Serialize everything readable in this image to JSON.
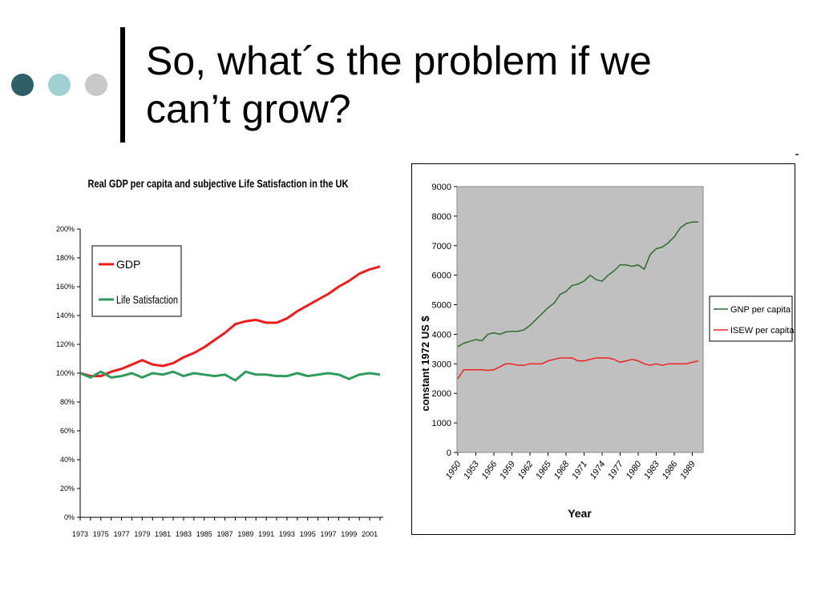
{
  "slide": {
    "title_line1": "So, what´s the problem if we",
    "title_line2": "can’t grow?",
    "accent_dots": [
      "#2f5f68",
      "#9fd0d2",
      "#c8c8c8"
    ]
  },
  "chart_data": [
    {
      "type": "line",
      "title": "Real GDP per capita and subjective Life Satisfaction in the UK",
      "xlabel": "",
      "ylabel": "",
      "x": [
        1973,
        1974,
        1975,
        1976,
        1977,
        1978,
        1979,
        1980,
        1981,
        1982,
        1983,
        1984,
        1985,
        1986,
        1987,
        1988,
        1989,
        1990,
        1991,
        1992,
        1993,
        1994,
        1995,
        1996,
        1997,
        1998,
        1999,
        2000,
        2001,
        2002
      ],
      "x_tick_labels": [
        "1973",
        "1975",
        "1977",
        "1979",
        "1981",
        "1983",
        "1985",
        "1987",
        "1989",
        "1991",
        "1993",
        "1995",
        "1997",
        "1999",
        "2001"
      ],
      "y_ticks": [
        0,
        20,
        40,
        60,
        80,
        100,
        120,
        140,
        160,
        180,
        200
      ],
      "y_tick_labels": [
        "0%",
        "20%",
        "40%",
        "60%",
        "80%",
        "100%",
        "120%",
        "140%",
        "160%",
        "180%",
        "200%"
      ],
      "ylim": [
        0,
        200
      ],
      "legend_position": "top-left",
      "grid": false,
      "series": [
        {
          "name": "GDP",
          "color": "#ee1c1c",
          "values": [
            100,
            98,
            98,
            101,
            103,
            106,
            109,
            106,
            105,
            107,
            111,
            114,
            118,
            123,
            128,
            134,
            136,
            137,
            135,
            135,
            138,
            143,
            147,
            151,
            155,
            160,
            164,
            169,
            172,
            174
          ]
        },
        {
          "name": "Life Satisfaction",
          "color": "#2e9a5c",
          "values": [
            100,
            97,
            101,
            97,
            98,
            100,
            97,
            100,
            99,
            101,
            98,
            100,
            99,
            98,
            99,
            95,
            101,
            99,
            99,
            98,
            98,
            100,
            98,
            99,
            100,
            99,
            96,
            99,
            100,
            99
          ]
        }
      ]
    },
    {
      "type": "line",
      "title": "",
      "xlabel": "Year",
      "ylabel": "constant 1972 US $",
      "x": [
        1950,
        1951,
        1952,
        1953,
        1954,
        1955,
        1956,
        1957,
        1958,
        1959,
        1960,
        1961,
        1962,
        1963,
        1964,
        1965,
        1966,
        1967,
        1968,
        1969,
        1970,
        1971,
        1972,
        1973,
        1974,
        1975,
        1976,
        1977,
        1978,
        1979,
        1980,
        1981,
        1982,
        1983,
        1984,
        1985,
        1986,
        1987,
        1988,
        1989,
        1990
      ],
      "x_tick_labels": [
        "1950",
        "1953",
        "1956",
        "1959",
        "1962",
        "1965",
        "1968",
        "1971",
        "1974",
        "1977",
        "1980",
        "1983",
        "1986",
        "1989"
      ],
      "y_ticks": [
        0,
        1000,
        2000,
        3000,
        4000,
        5000,
        6000,
        7000,
        8000,
        9000
      ],
      "y_tick_labels": [
        "0",
        "1000",
        "2000",
        "3000",
        "4000",
        "5000",
        "6000",
        "7000",
        "8000",
        "9000"
      ],
      "ylim": [
        0,
        9000
      ],
      "legend_position": "right",
      "grid": false,
      "series": [
        {
          "name": "GNP per capita",
          "color": "#2f6b2f",
          "values": [
            3580,
            3700,
            3760,
            3820,
            3780,
            4000,
            4050,
            4000,
            4080,
            4100,
            4100,
            4150,
            4300,
            4500,
            4700,
            4900,
            5050,
            5350,
            5450,
            5650,
            5700,
            5800,
            6000,
            5850,
            5800,
            6000,
            6150,
            6350,
            6350,
            6300,
            6350,
            6200,
            6700,
            6900,
            6950,
            7100,
            7300,
            7600,
            7750,
            7800,
            7800
          ]
        },
        {
          "name": "ISEW per capita",
          "color": "#ee2222",
          "values": [
            2500,
            2800,
            2800,
            2800,
            2800,
            2780,
            2800,
            2900,
            3000,
            3000,
            2950,
            2950,
            3000,
            3000,
            3000,
            3100,
            3150,
            3200,
            3200,
            3200,
            3100,
            3100,
            3150,
            3200,
            3200,
            3200,
            3150,
            3050,
            3100,
            3150,
            3100,
            3000,
            2950,
            3000,
            2950,
            3000,
            3000,
            3000,
            3000,
            3050,
            3100
          ]
        }
      ]
    }
  ]
}
